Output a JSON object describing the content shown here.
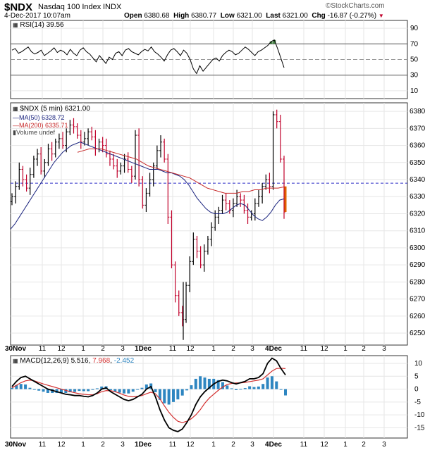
{
  "header": {
    "symbol": "$NDX",
    "name": "Nasdaq 100 Index",
    "exchange": "INDX",
    "datetime": "4-Dec-2017 10:07am",
    "open_label": "Open",
    "open": "6380.68",
    "high_label": "High",
    "high": "6380.77",
    "low_label": "Low",
    "low": "6321.00",
    "last_label": "Last",
    "last": "6321.00",
    "chg_label": "Chg",
    "chg": "-16.87 (-0.27%)",
    "watermark": "©StockCharts.com"
  },
  "rsi_panel": {
    "label": "RSI(14) 39.56",
    "value": 39.56
  },
  "price_panel": {
    "legend": [
      {
        "text": "$NDX (5 min) 6321.00",
        "color": "#000000"
      },
      {
        "text": "MA(50) 6328.72",
        "color": "#1a237e"
      },
      {
        "text": "MA(200) 6335.71",
        "color": "#c62828"
      },
      {
        "text": "Volume undef",
        "color": "#000000"
      }
    ],
    "last_price": 6321.0
  },
  "macd_panel": {
    "label_prefix": "MACD(12,26,9)",
    "macd": "5.516",
    "signal": "7.968",
    "hist": "-2.452"
  },
  "x_axis_labels": [
    "30Nov",
    "11",
    "12",
    "1",
    "2",
    "3",
    "1Dec",
    "11",
    "12",
    "1",
    "2",
    "3",
    "4Dec",
    "11",
    "12",
    "1",
    "2",
    "3"
  ],
  "colors": {
    "up": "#000000",
    "down": "#c0002a",
    "ma50": "#1a237e",
    "ma200": "#c62828",
    "rsi_line": "#000000",
    "rsi_over": "#3a7a3a",
    "rsi_under": "#c0392b",
    "macd_line": "#000000",
    "signal_line": "#d32f2f",
    "hist": "#2e86c1",
    "last_price_line": "#2c2cc8",
    "grid": "#e6e6e6"
  },
  "chart_data": [
    {
      "type": "line",
      "title": "RSI(14)",
      "y_ticks": [
        10,
        30,
        50,
        70,
        90
      ],
      "ylim": [
        0,
        100
      ],
      "overbought": 70,
      "oversold": 30,
      "series": [
        {
          "name": "RSI(14)",
          "values": [
            62,
            64,
            58,
            60,
            63,
            66,
            60,
            57,
            59,
            62,
            55,
            58,
            61,
            65,
            59,
            62,
            60,
            56,
            63,
            58,
            55,
            62,
            65,
            60,
            57,
            52,
            47,
            55,
            50,
            45,
            53,
            50,
            58,
            60,
            55,
            62,
            64,
            60,
            58,
            56,
            60,
            63,
            61,
            66,
            60,
            57,
            53,
            48,
            56,
            62,
            64,
            60,
            55,
            62,
            58,
            50,
            38,
            32,
            42,
            35,
            40,
            45,
            50,
            52,
            48,
            55,
            59,
            62,
            60,
            56,
            58,
            62,
            66,
            63,
            59,
            55,
            60,
            62,
            65,
            68,
            73,
            75,
            64,
            52,
            39.56
          ]
        }
      ]
    },
    {
      "type": "line",
      "title": "$NDX (5 min)",
      "ylim": [
        6243,
        6385
      ],
      "y_ticks": [
        6250,
        6260,
        6270,
        6280,
        6290,
        6300,
        6310,
        6320,
        6330,
        6340,
        6350,
        6360,
        6370,
        6380
      ],
      "series": [
        {
          "name": "$NDX (5 min)",
          "values": [
            6330,
            6336,
            6346,
            6340,
            6335,
            6343,
            6352,
            6355,
            6345,
            6350,
            6358,
            6355,
            6362,
            6364,
            6360,
            6368,
            6372,
            6371,
            6366,
            6362,
            6364,
            6368,
            6365,
            6358,
            6362,
            6360,
            6355,
            6352,
            6348,
            6345,
            6348,
            6352,
            6346,
            6342,
            6366,
            6340,
            6325,
            6332,
            6340,
            6348,
            6357,
            6362,
            6352,
            6318,
            6290,
            6272,
            6262,
            6258,
            6278,
            6292,
            6305,
            6298,
            6290,
            6298,
            6305,
            6312,
            6318,
            6322,
            6328,
            6326,
            6322,
            6326,
            6330,
            6328,
            6322,
            6318,
            6320,
            6326,
            6330,
            6336,
            6340,
            6336,
            6378,
            6374,
            6352,
            6321
          ]
        },
        {
          "name": "MA(50)",
          "values": [
            6311,
            6314,
            6318,
            6322,
            6326,
            6330,
            6334,
            6338,
            6342,
            6346,
            6350,
            6353,
            6356,
            6358,
            6360,
            6361,
            6362,
            6361,
            6360,
            6359,
            6358,
            6357,
            6356,
            6355,
            6354,
            6353,
            6352,
            6351,
            6350,
            6349,
            6348,
            6347,
            6346,
            6346,
            6346,
            6345,
            6344,
            6344,
            6343,
            6342,
            6340,
            6337,
            6333,
            6329,
            6326,
            6323,
            6321,
            6320,
            6320,
            6320,
            6321,
            6323,
            6325,
            6326,
            6325,
            6322,
            6319,
            6317,
            6316,
            6318,
            6321,
            6325,
            6328,
            6328.72
          ]
        },
        {
          "name": "MA(200)",
          "values": [
            6356,
            6357,
            6358,
            6358,
            6358,
            6357,
            6356,
            6355,
            6354,
            6353,
            6352,
            6350,
            6348,
            6347,
            6346,
            6345,
            6344,
            6343,
            6342,
            6341,
            6339,
            6337,
            6335,
            6334,
            6333,
            6332,
            6332,
            6332,
            6333,
            6333,
            6334,
            6334,
            6335,
            6335,
            6335,
            6335.71
          ]
        }
      ]
    },
    {
      "type": "line",
      "title": "MACD(12,26,9)",
      "ylim": [
        -19,
        13
      ],
      "y_ticks": [
        10,
        5,
        0,
        -5,
        -10,
        -15
      ],
      "series": [
        {
          "name": "MACD(12,26,9)",
          "values": [
            1,
            3,
            4.5,
            5,
            4,
            3,
            2,
            1,
            0,
            -0.5,
            -1,
            -1.5,
            -2,
            -2.2,
            -2.5,
            -2.5,
            -2.8,
            -3,
            -2.5,
            -1.5,
            0,
            0.5,
            -1,
            -2,
            -3,
            -4,
            -4.5,
            -4,
            -3,
            -2,
            0,
            1,
            -3,
            -8,
            -12,
            -15,
            -16,
            -16.5,
            -15.5,
            -13,
            -10,
            -6,
            -3,
            -1,
            0.5,
            2,
            3,
            3.5,
            3.2,
            2.5,
            2,
            2.5,
            3,
            4,
            4,
            4.5,
            6,
            10,
            12,
            11,
            8,
            5.516
          ]
        },
        {
          "name": "Signal",
          "values": [
            0.5,
            1.5,
            2.5,
            3.2,
            3.5,
            3.2,
            2.6,
            2,
            1.5,
            1,
            0.5,
            0,
            -0.5,
            -1,
            -1.4,
            -1.8,
            -2,
            -2.2,
            -2.2,
            -1.8,
            -1,
            -0.6,
            -0.6,
            -1,
            -1.6,
            -2.3,
            -2.8,
            -3,
            -2.8,
            -2.5,
            -1.8,
            -1.2,
            -1.8,
            -3.8,
            -6.5,
            -9,
            -11,
            -12.5,
            -13,
            -12.5,
            -11.5,
            -10,
            -8,
            -5.5,
            -3.5,
            -2,
            -0.5,
            0.8,
            1.8,
            2.2,
            2.4,
            2.4,
            2.6,
            2.9,
            3.2,
            3.5,
            4,
            5.5,
            7,
            8,
            8.1,
            7.968
          ]
        },
        {
          "name": "Histogram",
          "values": [
            0.5,
            1.5,
            2,
            1.8,
            0.5,
            -0.2,
            -0.6,
            -1,
            -1.5,
            -1.5,
            -1.5,
            -1.5,
            -1.5,
            -1.2,
            -1.1,
            -0.7,
            -0.8,
            -0.8,
            -0.3,
            0.3,
            1,
            1.1,
            -0.4,
            -1,
            -1.4,
            -1.7,
            -1.7,
            -1,
            -0.2,
            0.5,
            1.8,
            2.2,
            -1.2,
            -4.2,
            -5.5,
            -6,
            -5,
            -4,
            -2.5,
            -0.5,
            1.5,
            4,
            5,
            4.5,
            4,
            4,
            3.5,
            2.7,
            1.4,
            0.3,
            -0.4,
            0.1,
            0.4,
            1.1,
            0.8,
            1,
            2,
            4.5,
            5,
            3,
            -0.1,
            -2.452
          ]
        }
      ]
    }
  ]
}
